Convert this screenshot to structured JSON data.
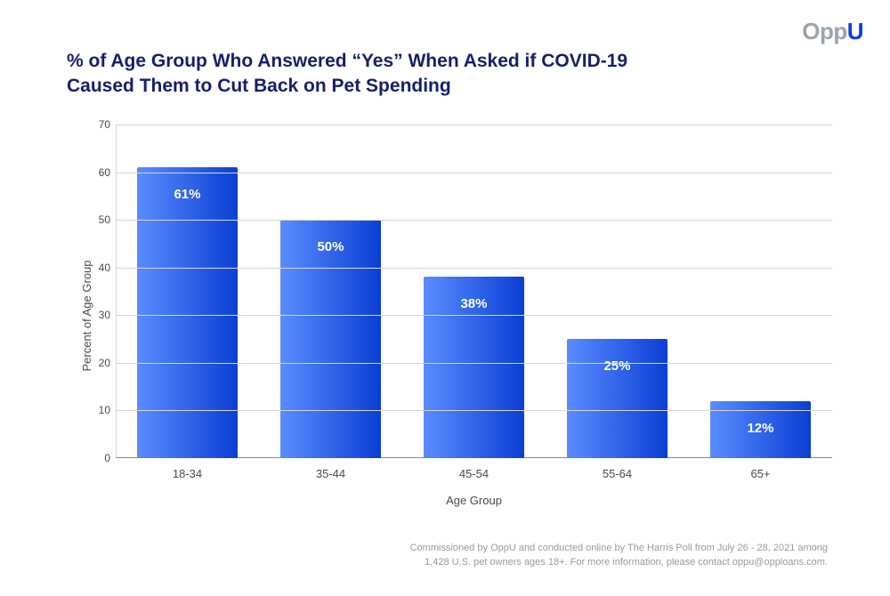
{
  "logo": {
    "part1": "Opp",
    "part2": "U"
  },
  "title": "% of Age Group Who Answered “Yes” When Asked if COVID-19 Caused Them to Cut Back on Pet Spending",
  "chart": {
    "type": "bar",
    "y_axis_label": "Percent of Age Group",
    "x_axis_label": "Age Group",
    "y_min": 0,
    "y_max": 70,
    "y_tick_step": 10,
    "categories": [
      "18-34",
      "35-44",
      "45-54",
      "55-64",
      "65+"
    ],
    "values": [
      61,
      50,
      38,
      25,
      12
    ],
    "value_labels": [
      "61%",
      "50%",
      "38%",
      "25%",
      "12%"
    ],
    "bar_gradient_from": "#5a8cff",
    "bar_gradient_to": "#0a3fd4",
    "bar_width_pct": 14,
    "grid_color": "#d6d6d6",
    "background_color": "#ffffff",
    "axis_text_color": "#4a4a4a",
    "label_fontsize": 13,
    "value_label_fontsize": 15,
    "value_label_color": "#ffffff"
  },
  "footnote_line1": "Commissioned by OppU and conducted online by The Harris Poll from July 26 - 28, 2021 among",
  "footnote_line2": "1,428 U.S. pet owners ages 18+. For more information, please contact oppu@opploans.com."
}
